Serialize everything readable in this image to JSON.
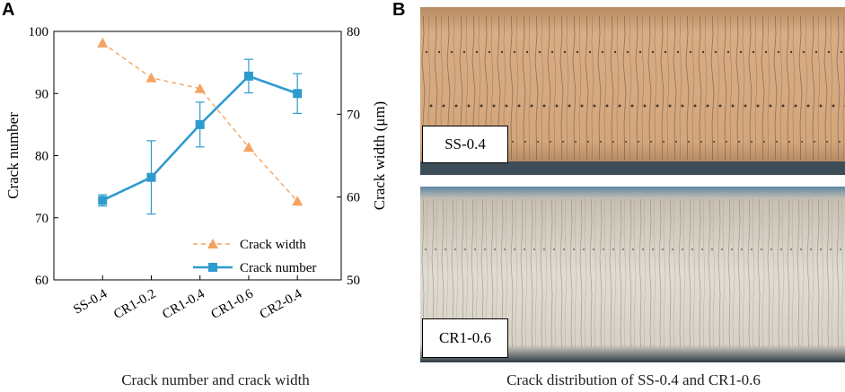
{
  "panels": {
    "a_label": "A",
    "b_label": "B",
    "a_caption": "Crack number and crack width",
    "b_caption": "Crack distribution of SS-0.4 and CR1-0.6",
    "photo_top_label": "SS-0.4",
    "photo_bottom_label": "CR1-0.6"
  },
  "chart_data": {
    "type": "line",
    "categories": [
      "SS-0.4",
      "CR1-0.2",
      "CR1-0.4",
      "CR1-0.6",
      "CR2-0.4"
    ],
    "ylabel": "Crack number",
    "y2label": "Crack width (μm)",
    "ylim": [
      60,
      100
    ],
    "y2lim": [
      50,
      80
    ],
    "yticks": [
      "60",
      "70",
      "80",
      "90",
      "100"
    ],
    "y2ticks": [
      "50",
      "60",
      "70",
      "80"
    ],
    "grid": false,
    "legend_position": "bottom-right",
    "series": [
      {
        "name": "Crack width",
        "axis": "right",
        "values": [
          78.6,
          74.4,
          73.1,
          66.0,
          59.5
        ],
        "color": "#F4A460",
        "line": "dashed",
        "marker": "triangle"
      },
      {
        "name": "Crack number",
        "axis": "left",
        "values": [
          72.8,
          76.5,
          85.0,
          92.8,
          90.0
        ],
        "errors": [
          0.9,
          5.9,
          3.6,
          2.7,
          3.2
        ],
        "color": "#2E9BCF",
        "line": "solid",
        "marker": "square"
      }
    ]
  },
  "colors": {
    "crack_width": "#F4A460",
    "crack_number": "#2E9BCF",
    "photo_top_base": "#D6A880",
    "photo_bottom_base": "#D9D4C9"
  }
}
